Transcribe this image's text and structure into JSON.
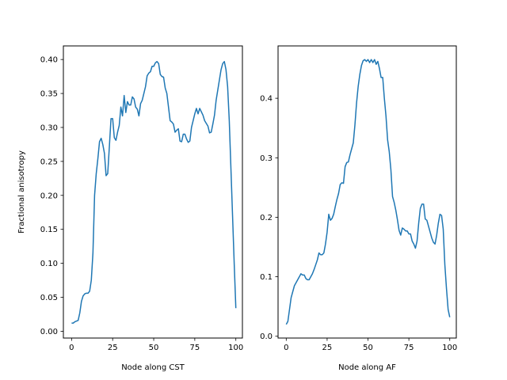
{
  "colors": {
    "line": "#1f77b4",
    "axes": "#000000",
    "background": "#ffffff"
  },
  "chart_data": [
    {
      "type": "line",
      "title": "",
      "xlabel": "Node along CST",
      "ylabel": "Fractional anisotropy",
      "xlim": [
        -5,
        104
      ],
      "ylim": [
        -0.01,
        0.42
      ],
      "xticks": [
        0,
        25,
        50,
        75,
        100
      ],
      "yticks": [
        0.0,
        0.05,
        0.1,
        0.15,
        0.2,
        0.25,
        0.3,
        0.35,
        0.4
      ],
      "ytick_labels": [
        "0.00",
        "0.05",
        "0.10",
        "0.15",
        "0.20",
        "0.25",
        "0.30",
        "0.35",
        "0.40"
      ],
      "grid": false,
      "series": [
        {
          "values": [
            0.012,
            0.012,
            0.014,
            0.015,
            0.016,
            0.027,
            0.044,
            0.052,
            0.055,
            0.056,
            0.056,
            0.059,
            0.075,
            0.115,
            0.2,
            0.232,
            0.254,
            0.279,
            0.284,
            0.275,
            0.262,
            0.229,
            0.232,
            0.272,
            0.313,
            0.313,
            0.285,
            0.281,
            0.293,
            0.303,
            0.33,
            0.317,
            0.347,
            0.322,
            0.338,
            0.333,
            0.333,
            0.345,
            0.342,
            0.33,
            0.327,
            0.317,
            0.335,
            0.34,
            0.35,
            0.36,
            0.376,
            0.38,
            0.382,
            0.39,
            0.39,
            0.395,
            0.397,
            0.394,
            0.378,
            0.375,
            0.374,
            0.358,
            0.35,
            0.33,
            0.31,
            0.308,
            0.305,
            0.293,
            0.296,
            0.298,
            0.28,
            0.279,
            0.29,
            0.29,
            0.283,
            0.278,
            0.28,
            0.3,
            0.31,
            0.32,
            0.328,
            0.32,
            0.328,
            0.323,
            0.318,
            0.31,
            0.306,
            0.302,
            0.292,
            0.293,
            0.305,
            0.318,
            0.34,
            0.355,
            0.37,
            0.385,
            0.394,
            0.397,
            0.385,
            0.36,
            0.31,
            0.24,
            0.17,
            0.1,
            0.034
          ]
        }
      ]
    },
    {
      "type": "line",
      "title": "",
      "xlabel": "Node along AF",
      "ylabel": "",
      "xlim": [
        -5,
        104
      ],
      "ylim": [
        -0.003,
        0.488
      ],
      "xticks": [
        0,
        25,
        50,
        75,
        100
      ],
      "yticks": [
        0.0,
        0.1,
        0.2,
        0.3,
        0.4
      ],
      "ytick_labels": [
        "0.0",
        "0.1",
        "0.2",
        "0.3",
        "0.4"
      ],
      "grid": false,
      "series": [
        {
          "values": [
            0.02,
            0.025,
            0.045,
            0.065,
            0.075,
            0.085,
            0.09,
            0.095,
            0.1,
            0.105,
            0.103,
            0.103,
            0.097,
            0.095,
            0.095,
            0.1,
            0.105,
            0.112,
            0.12,
            0.128,
            0.14,
            0.137,
            0.137,
            0.14,
            0.155,
            0.175,
            0.205,
            0.195,
            0.198,
            0.205,
            0.218,
            0.23,
            0.24,
            0.255,
            0.258,
            0.257,
            0.285,
            0.292,
            0.293,
            0.305,
            0.315,
            0.325,
            0.355,
            0.392,
            0.42,
            0.44,
            0.455,
            0.463,
            0.465,
            0.462,
            0.465,
            0.46,
            0.465,
            0.46,
            0.465,
            0.457,
            0.462,
            0.45,
            0.435,
            0.435,
            0.4,
            0.37,
            0.33,
            0.31,
            0.28,
            0.235,
            0.225,
            0.212,
            0.196,
            0.178,
            0.17,
            0.182,
            0.18,
            0.177,
            0.177,
            0.172,
            0.172,
            0.16,
            0.155,
            0.148,
            0.16,
            0.19,
            0.215,
            0.222,
            0.222,
            0.197,
            0.195,
            0.185,
            0.175,
            0.165,
            0.158,
            0.155,
            0.17,
            0.19,
            0.205,
            0.203,
            0.18,
            0.12,
            0.08,
            0.045,
            0.032
          ]
        }
      ]
    }
  ]
}
